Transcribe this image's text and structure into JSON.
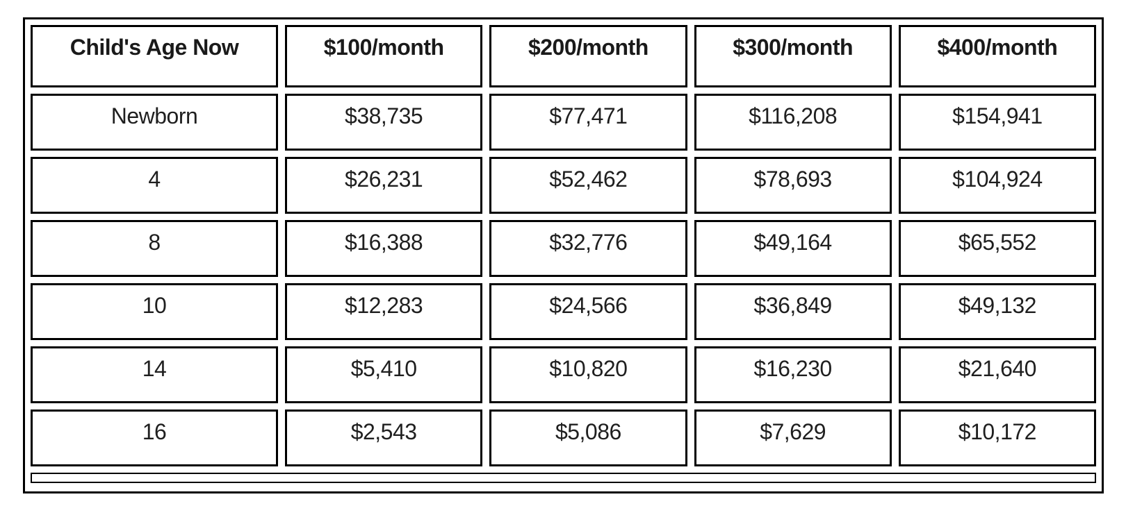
{
  "chart_data": {
    "type": "table",
    "title": "",
    "columns": [
      "Child's Age Now",
      "$100/month",
      "$200/month",
      "$300/month",
      "$400/month"
    ],
    "rows": [
      [
        "Newborn",
        "$38,735",
        "$77,471",
        "$116,208",
        "$154,941"
      ],
      [
        "4",
        "$26,231",
        "$52,462",
        "$78,693",
        "$104,924"
      ],
      [
        "8",
        "$16,388",
        "$32,776",
        "$49,164",
        "$65,552"
      ],
      [
        "10",
        "$12,283",
        "$24,566",
        "$36,849",
        "$49,132"
      ],
      [
        "14",
        "$5,410",
        "$10,820",
        "$16,230",
        "$21,640"
      ],
      [
        "16",
        "$2,543",
        "$5,086",
        "$7,629",
        "$10,172"
      ]
    ],
    "layout": {
      "grid": "bordered-cells-with-gaps",
      "legend": "none",
      "header_style": "bold"
    },
    "colors": {
      "border": "#000000",
      "text": "#1f1f1f",
      "background": "#ffffff"
    }
  }
}
